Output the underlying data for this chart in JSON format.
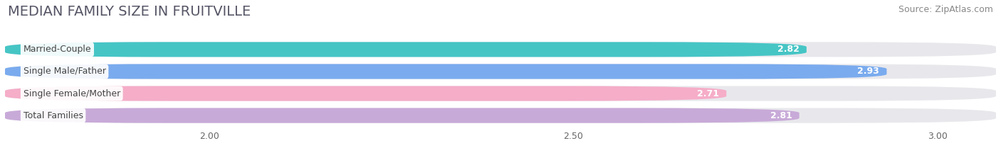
{
  "title": "MEDIAN FAMILY SIZE IN FRUITVILLE",
  "source": "Source: ZipAtlas.com",
  "categories": [
    "Married-Couple",
    "Single Male/Father",
    "Single Female/Mother",
    "Total Families"
  ],
  "values": [
    2.82,
    2.93,
    2.71,
    2.81
  ],
  "bar_colors": [
    "#46c5c5",
    "#7aabee",
    "#f5adc8",
    "#c8aad8"
  ],
  "xlim_min": 1.72,
  "xlim_max": 3.08,
  "xticks": [
    2.0,
    2.5,
    3.0
  ],
  "background_color": "#ffffff",
  "bar_bg_color": "#e8e8ec",
  "title_fontsize": 14,
  "source_fontsize": 9,
  "label_fontsize": 9,
  "value_fontsize": 9
}
